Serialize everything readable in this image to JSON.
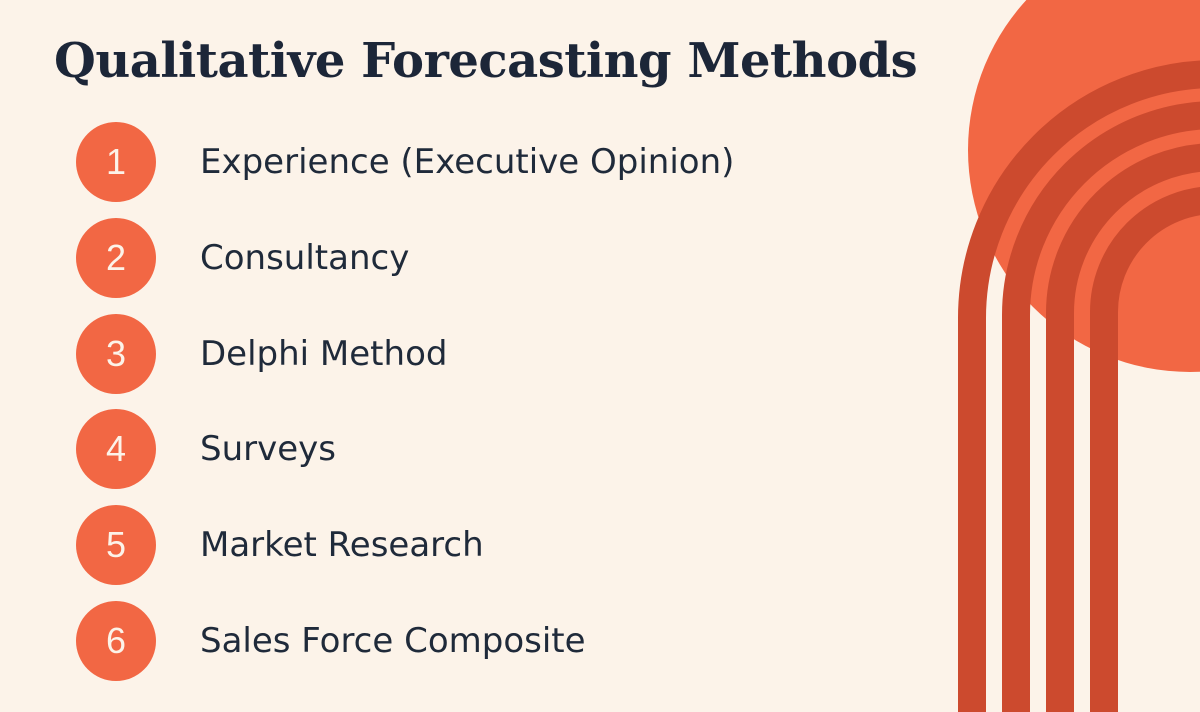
{
  "title": "Qualitative Forecasting Methods",
  "items": [
    {
      "number": "1",
      "label": "Experience (Executive Opinion)"
    },
    {
      "number": "2",
      "label": "Consultancy"
    },
    {
      "number": "3",
      "label": "Delphi Method"
    },
    {
      "number": "4",
      "label": "Surveys"
    },
    {
      "number": "5",
      "label": "Market Research"
    },
    {
      "number": "6",
      "label": "Sales Force Composite"
    }
  ],
  "colors": {
    "background": "#fcf3e9",
    "title_text": "#1c2638",
    "body_text": "#1f2a3a",
    "badge": "#f26744",
    "sun": "#f26744",
    "arches": "#cc4a2e"
  }
}
